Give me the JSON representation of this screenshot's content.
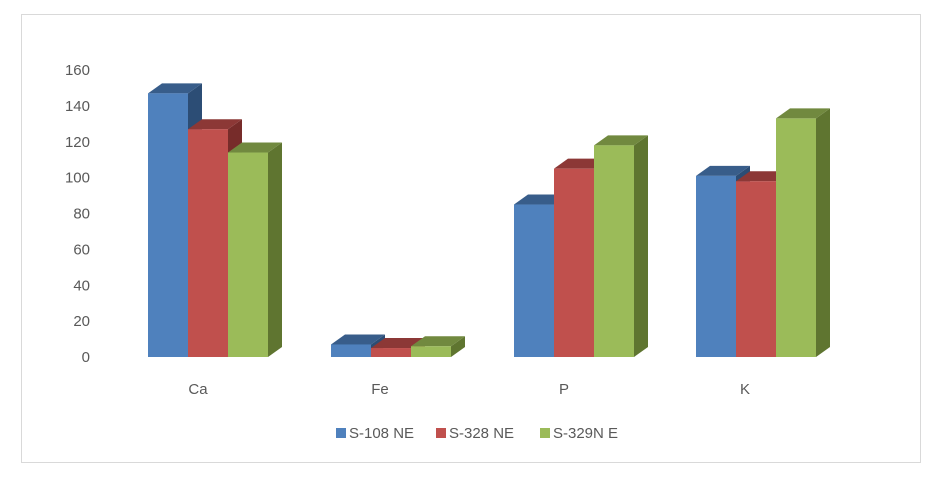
{
  "chart_data": {
    "type": "bar",
    "categories": [
      "Ca",
      "Fe",
      "P",
      "K"
    ],
    "series": [
      {
        "name": "S-108 NE",
        "values": [
          147,
          7,
          85,
          101
        ],
        "color": "#4f81bd",
        "top": "#385d8a",
        "side": "#2c4d75"
      },
      {
        "name": "S-328 NE",
        "values": [
          127,
          5,
          105,
          98
        ],
        "color": "#c0504d",
        "top": "#8c3836",
        "side": "#772c2a"
      },
      {
        "name": "S-329N E",
        "values": [
          114,
          6,
          118,
          133
        ],
        "color": "#9bbb59",
        "top": "#71893f",
        "side": "#5f7530"
      }
    ],
    "yticks": [
      0,
      20,
      40,
      60,
      80,
      100,
      120,
      140,
      160
    ],
    "ylim": [
      0,
      160
    ],
    "legend_position": "bottom",
    "grid": false,
    "title": "",
    "xlabel": "",
    "ylabel": ""
  }
}
